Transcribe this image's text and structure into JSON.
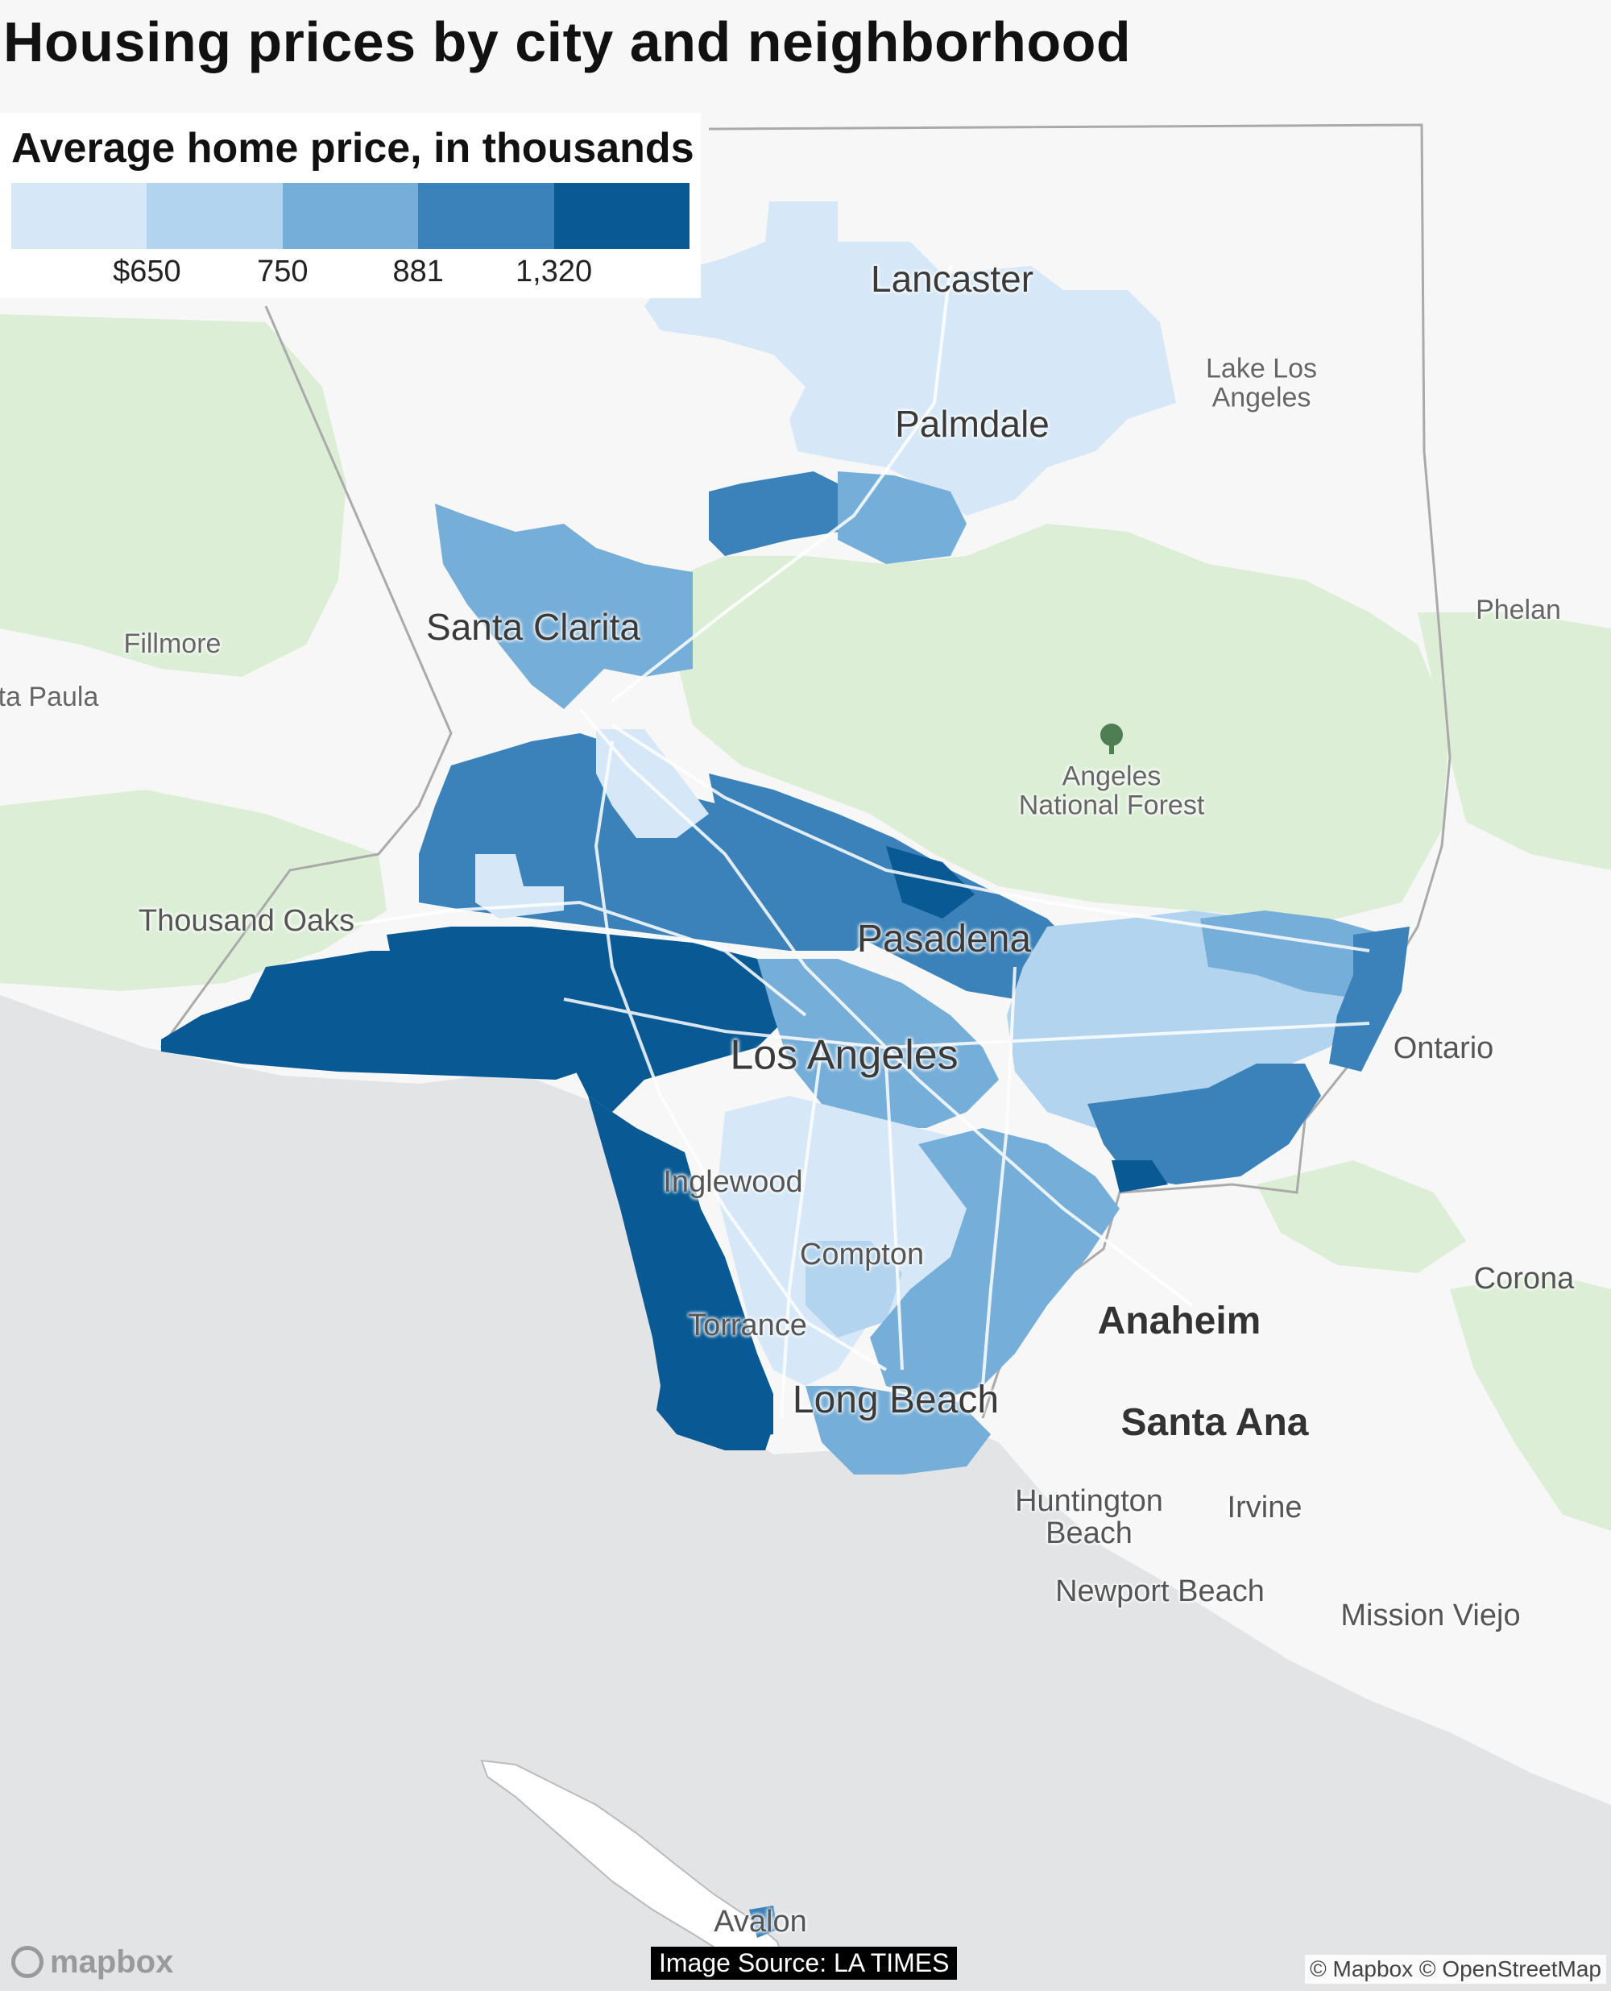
{
  "title": "Housing prices by city and neighborhood",
  "legend": {
    "title": "Average home price, in thousands",
    "thresholds": [
      "$650",
      "750",
      "881",
      "1,320"
    ],
    "colors": [
      "#d6e8f7",
      "#b3d4ee",
      "#75aed8",
      "#3a82b9",
      "#095a94"
    ]
  },
  "map_colors": {
    "ocean": "#e2e4e6",
    "land": "#f7f7f7",
    "forest": "#dcefd6",
    "county_line": "#aaaaaa",
    "roads": "#ffffff"
  },
  "labels": {
    "lancaster": "Lancaster",
    "lake_los_angeles": "Lake Los\nAngeles",
    "palmdale": "Palmdale",
    "phelan": "Phelan",
    "fillmore": "Fillmore",
    "santa_paula": "ta Paula",
    "santa_clarita": "Santa Clarita",
    "angeles_nf": "Angeles\nNational Forest",
    "thousand_oaks": "Thousand Oaks",
    "pasadena": "Pasadena",
    "ontario": "Ontario",
    "los_angeles": "Los Angeles",
    "inglewood": "Inglewood",
    "corona": "Corona",
    "compton": "Compton",
    "anaheim": "Anaheim",
    "torrance": "Torrance",
    "long_beach": "Long Beach",
    "santa_ana": "Santa Ana",
    "huntington_beach": "Huntington\nBeach",
    "irvine": "Irvine",
    "newport_beach": "Newport Beach",
    "mission_viejo": "Mission Viejo",
    "avalon": "Avalon"
  },
  "icons": {
    "forest": "tree-icon",
    "logo": "mapbox-logo-icon"
  },
  "footer": {
    "logo_text": "mapbox",
    "source": "Image Source: LA TIMES",
    "attribution": "© Mapbox © OpenStreetMap"
  }
}
